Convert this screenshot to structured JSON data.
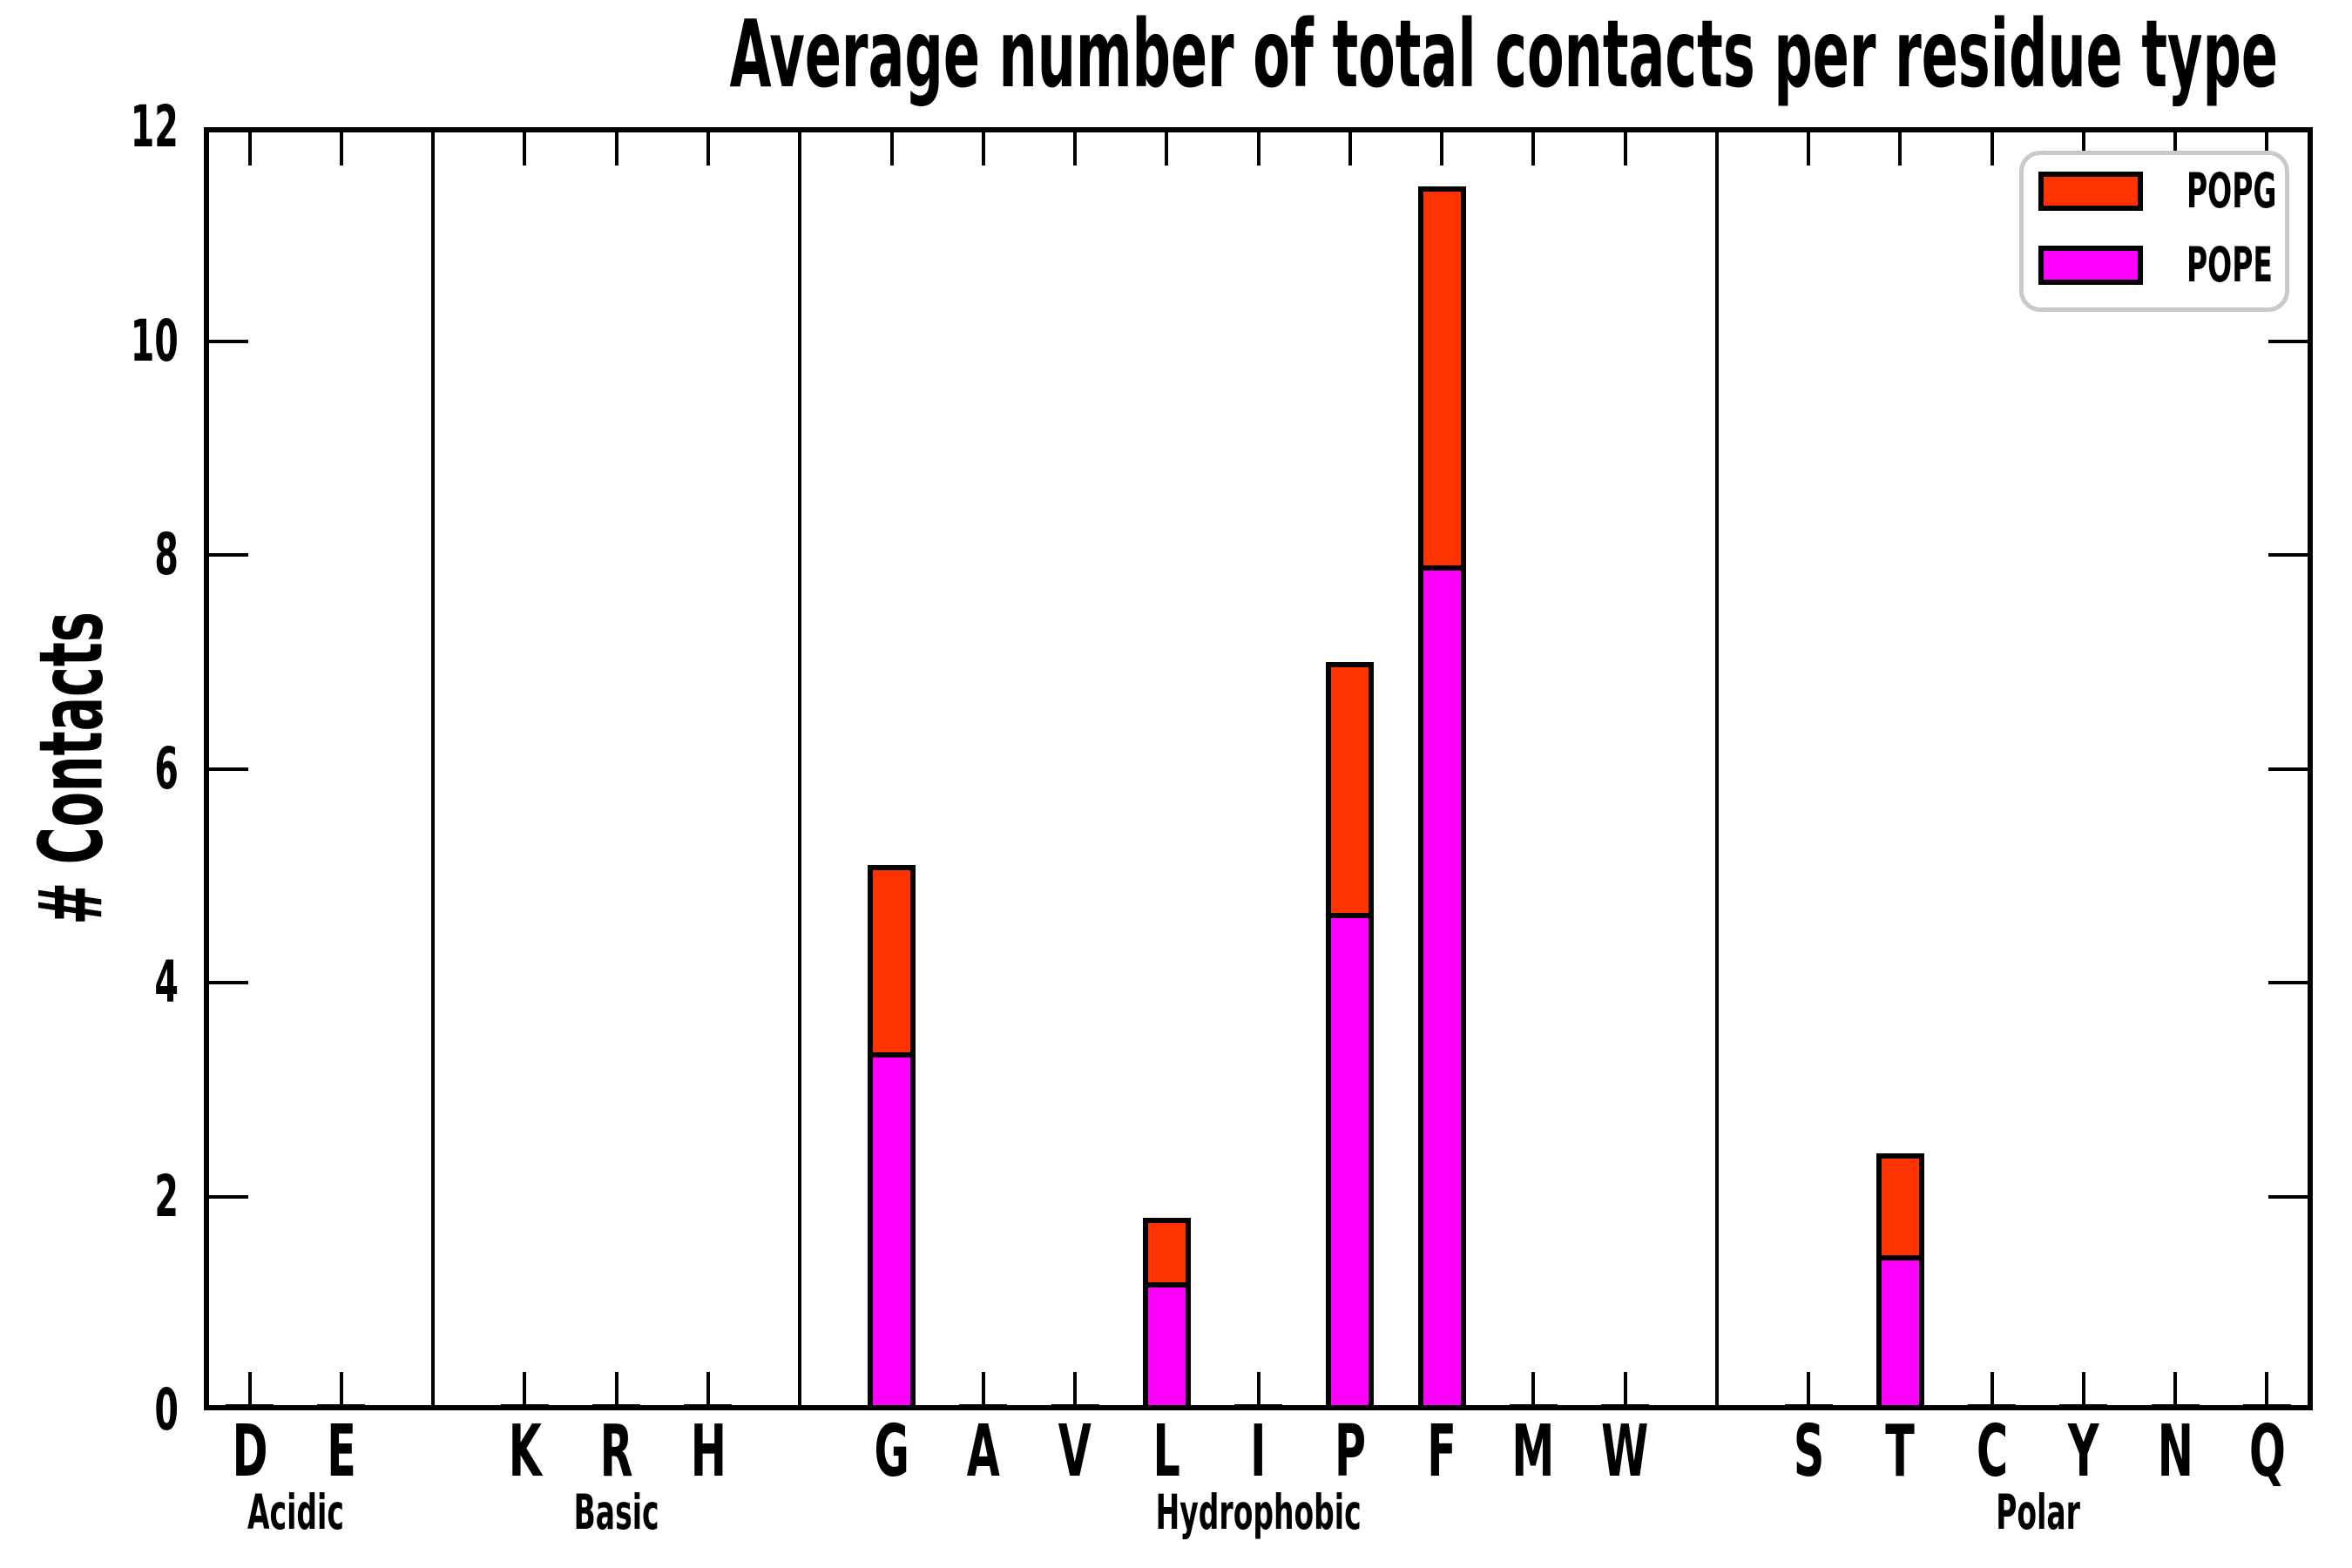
{
  "title": "Average number of total contacts per residue type",
  "ylabel": "# Contacts",
  "legend": [
    {
      "label": "POPG",
      "color": "#ff3300"
    },
    {
      "label": "POPE",
      "color": "#ff00ff"
    }
  ],
  "colors": {
    "popg": "#ff3300",
    "pope": "#ff00ff",
    "axis": "#000000",
    "legend_border": "#c9c9c9",
    "background": "#ffffff"
  },
  "chart_data": {
    "type": "bar",
    "stacked": true,
    "title": "Average number of total contacts per residue type",
    "xlabel": "",
    "ylabel": "# Contacts",
    "ylim": [
      0,
      12
    ],
    "yticks": [
      0,
      2,
      4,
      6,
      8,
      10,
      12
    ],
    "grid": false,
    "legend_position": "upper right",
    "categories": [
      "D",
      "E",
      "K",
      "R",
      "H",
      "G",
      "A",
      "V",
      "L",
      "I",
      "P",
      "F",
      "M",
      "W",
      "S",
      "T",
      "C",
      "Y",
      "N",
      "Q"
    ],
    "groups": [
      {
        "label": "Acidic",
        "residues": [
          "D",
          "E"
        ]
      },
      {
        "label": "Basic",
        "residues": [
          "K",
          "R",
          "H"
        ]
      },
      {
        "label": "Hydrophobic",
        "residues": [
          "G",
          "A",
          "V",
          "L",
          "I",
          "P",
          "F",
          "M",
          "W"
        ]
      },
      {
        "label": "Polar",
        "residues": [
          "S",
          "T",
          "C",
          "Y",
          "N",
          "Q"
        ]
      }
    ],
    "series": [
      {
        "name": "POPE",
        "color": "#ff00ff",
        "values": [
          0,
          0,
          0,
          0,
          0,
          3.35,
          0,
          0,
          1.2,
          0,
          4.65,
          7.9,
          0,
          0,
          0,
          1.45,
          0,
          0,
          0,
          0
        ]
      },
      {
        "name": "POPG",
        "color": "#ff3300",
        "values": [
          0,
          0,
          0,
          0,
          0,
          1.75,
          0,
          0,
          0.6,
          0,
          2.35,
          3.55,
          0,
          0,
          0,
          0.95,
          0,
          0,
          0,
          0
        ]
      }
    ]
  }
}
